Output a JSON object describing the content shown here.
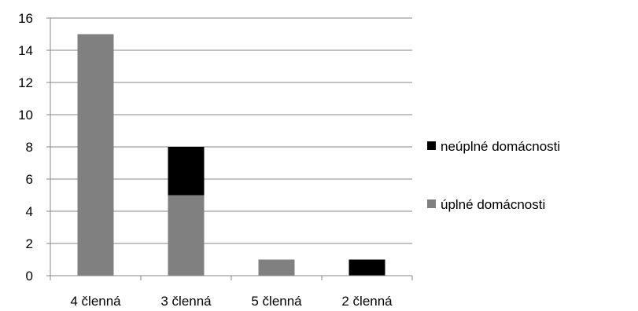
{
  "chart_data": {
    "type": "bar",
    "stacked": true,
    "categories": [
      "4 členná",
      "3 členná",
      "5 členná",
      "2 členná"
    ],
    "series": [
      {
        "name": "úplné domácnosti",
        "values": [
          15,
          5,
          1,
          0
        ],
        "color": "#808080"
      },
      {
        "name": "neúplné domácnosti",
        "values": [
          0,
          3,
          0,
          1
        ],
        "color": "#000000"
      }
    ],
    "ylim": [
      0,
      16
    ],
    "yticks": [
      0,
      2,
      4,
      6,
      8,
      10,
      12,
      14,
      16
    ],
    "grid": true,
    "legend": "right"
  }
}
